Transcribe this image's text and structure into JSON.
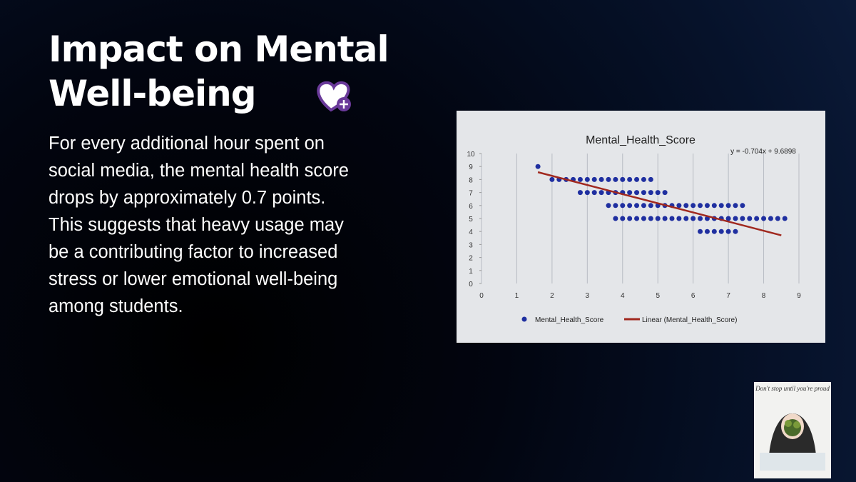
{
  "slide": {
    "title": "Impact on Mental Well-being",
    "body_lines": [
      "For every additional hour spent on",
      "social media, the mental health score",
      "drops by approximately 0.7 points.",
      "This suggests that heavy usage may",
      "be a contributing factor to increased",
      "stress or lower emotional well-being",
      "among students."
    ],
    "sticker_text": "Don't stop until you're proud"
  },
  "chart_data": {
    "type": "scatter",
    "title": "Mental_Health_Score",
    "annotation": "y = -0.704x + 9.6898",
    "xlim": [
      0,
      9
    ],
    "xticks": [
      0,
      1,
      2,
      3,
      4,
      5,
      6,
      7,
      8,
      9
    ],
    "ylim": [
      0,
      10
    ],
    "yticks": [
      0,
      1,
      2,
      3,
      4,
      5,
      6,
      7,
      8,
      9,
      10
    ],
    "grid": true,
    "series": [
      {
        "name": "Mental_Health_Score",
        "color": "#1f2fa0",
        "x": [
          1.6,
          2.0,
          2.2,
          2.4,
          2.6,
          2.8,
          3.0,
          3.2,
          3.4,
          3.6,
          3.8,
          4.0,
          4.2,
          4.4,
          4.6,
          4.8,
          2.8,
          3.0,
          3.2,
          3.4,
          3.6,
          3.8,
          4.0,
          4.2,
          4.4,
          4.6,
          4.8,
          5.0,
          5.2,
          3.6,
          3.8,
          4.0,
          4.2,
          4.4,
          4.6,
          4.8,
          5.0,
          5.2,
          5.4,
          5.6,
          5.8,
          6.0,
          6.2,
          6.4,
          6.6,
          6.8,
          7.0,
          7.2,
          7.4,
          3.8,
          4.0,
          4.2,
          4.4,
          4.6,
          4.8,
          5.0,
          5.2,
          5.4,
          5.6,
          5.8,
          6.0,
          6.2,
          6.4,
          6.6,
          6.8,
          7.0,
          7.2,
          7.4,
          7.6,
          7.8,
          8.0,
          8.2,
          8.4,
          8.6,
          6.2,
          6.4,
          6.6,
          6.8,
          7.0,
          7.2
        ],
        "y": [
          9,
          8,
          8,
          8,
          8,
          8,
          8,
          8,
          8,
          8,
          8,
          8,
          8,
          8,
          8,
          8,
          7,
          7,
          7,
          7,
          7,
          7,
          7,
          7,
          7,
          7,
          7,
          7,
          7,
          6,
          6,
          6,
          6,
          6,
          6,
          6,
          6,
          6,
          6,
          6,
          6,
          6,
          6,
          6,
          6,
          6,
          6,
          6,
          6,
          5,
          5,
          5,
          5,
          5,
          5,
          5,
          5,
          5,
          5,
          5,
          5,
          5,
          5,
          5,
          5,
          5,
          5,
          5,
          5,
          5,
          5,
          5,
          5,
          5,
          4,
          4,
          4,
          4,
          4,
          4
        ]
      },
      {
        "name": "Linear (Mental_Health_Score)",
        "color": "#a0281e",
        "line": true,
        "x": [
          1.6,
          8.5
        ],
        "y": [
          8.5634,
          3.7058
        ]
      }
    ]
  }
}
